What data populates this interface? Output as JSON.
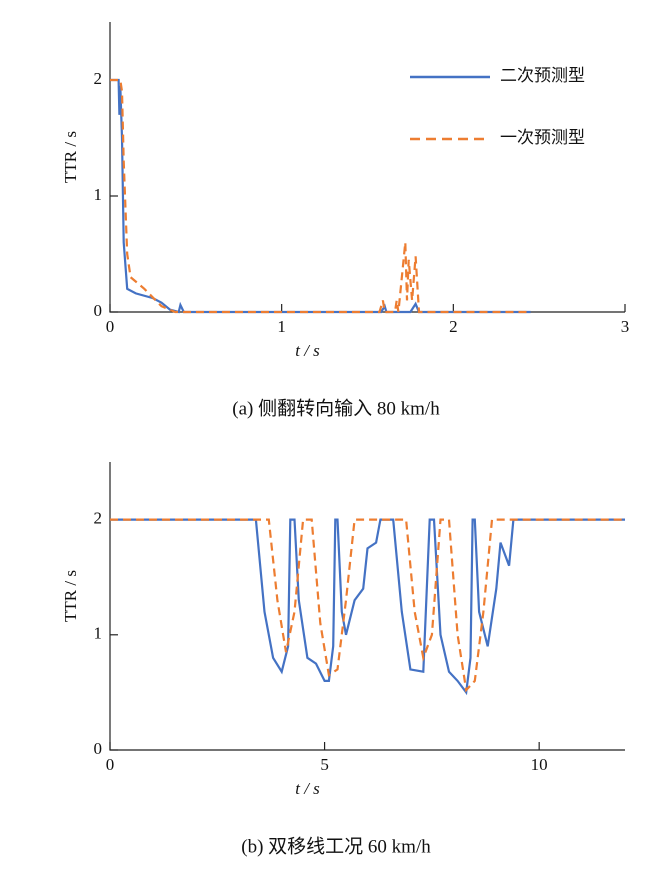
{
  "chart_data": [
    {
      "type": "line",
      "caption": "(a)  侧翻转向输入 80 km/h",
      "xlabel": "t / s",
      "ylabel": "TTR / s",
      "xlim": [
        0,
        3
      ],
      "xticks": [
        0,
        1,
        2,
        3
      ],
      "ylim": [
        0,
        2.5
      ],
      "yticks": [
        0,
        1,
        2
      ],
      "legend": "upper right",
      "series": [
        {
          "name": "二次预测型",
          "color": "#4472c4",
          "dash": false,
          "x": [
            0,
            0.05,
            0.055,
            0.06,
            0.07,
            0.08,
            0.1,
            0.15,
            0.25,
            0.3,
            0.35,
            0.4,
            0.41,
            0.43,
            1.58,
            1.6,
            1.61,
            1.75,
            1.78,
            1.8,
            2.45
          ],
          "values": [
            2,
            2,
            1.7,
            1.95,
            1.5,
            0.6,
            0.2,
            0.16,
            0.12,
            0.08,
            0.02,
            0,
            0.06,
            0,
            0,
            0.05,
            0,
            0,
            0.07,
            0,
            0
          ]
        },
        {
          "name": "一次预测型",
          "color": "#ed7d31",
          "dash": true,
          "x": [
            0,
            0.06,
            0.07,
            0.08,
            0.1,
            0.12,
            0.2,
            0.3,
            0.38,
            1.57,
            1.59,
            1.6,
            1.66,
            1.67,
            1.68,
            1.72,
            1.73,
            1.74,
            1.76,
            1.78,
            1.8,
            2.45
          ],
          "values": [
            2,
            2,
            1.9,
            1.3,
            0.5,
            0.3,
            0.2,
            0.05,
            0,
            0,
            0.1,
            0,
            0,
            0.1,
            0,
            0.6,
            0.1,
            0.45,
            0.1,
            0.48,
            0,
            0
          ]
        }
      ]
    },
    {
      "type": "line",
      "caption": "(b)  双移线工况 60 km/h",
      "xlabel": "t / s",
      "ylabel": "TTR / s",
      "xlim": [
        0,
        12
      ],
      "xticks": [
        0,
        5,
        10
      ],
      "ylim": [
        0,
        2.5
      ],
      "yticks": [
        0,
        1,
        2
      ],
      "series": [
        {
          "color": "#4472c4",
          "dash": false,
          "x": [
            0,
            3.4,
            3.6,
            3.8,
            4.0,
            4.15,
            4.2,
            4.3,
            4.4,
            4.6,
            4.8,
            5.0,
            5.1,
            5.2,
            5.25,
            5.3,
            5.4,
            5.5,
            5.7,
            5.9,
            6.0,
            6.2,
            6.3,
            6.6,
            6.8,
            7.0,
            7.3,
            7.45,
            7.55,
            7.7,
            7.9,
            8.1,
            8.3,
            8.4,
            8.45,
            8.5,
            8.6,
            8.8,
            9.0,
            9.1,
            9.3,
            9.4,
            12
          ],
          "values": [
            2,
            2,
            1.2,
            0.8,
            0.68,
            0.9,
            2,
            2,
            1.3,
            0.8,
            0.75,
            0.6,
            0.6,
            0.9,
            2,
            2,
            1.2,
            1.0,
            1.3,
            1.4,
            1.75,
            1.8,
            2,
            2,
            1.2,
            0.7,
            0.68,
            2,
            2,
            1.0,
            0.68,
            0.6,
            0.5,
            0.8,
            2,
            2,
            1.2,
            0.9,
            1.4,
            1.8,
            1.6,
            2,
            2
          ]
        },
        {
          "color": "#ed7d31",
          "dash": true,
          "x": [
            0,
            3.7,
            3.9,
            4.1,
            4.3,
            4.5,
            4.7,
            4.9,
            5.1,
            5.3,
            5.5,
            5.7,
            6.9,
            7.1,
            7.3,
            7.5,
            7.7,
            7.9,
            8.1,
            8.3,
            8.5,
            8.7,
            8.9,
            12
          ],
          "values": [
            2,
            2,
            1.3,
            0.85,
            1.2,
            2,
            2,
            1.1,
            0.65,
            0.7,
            1.3,
            2,
            2,
            1.2,
            0.8,
            1.0,
            2,
            2,
            1.0,
            0.52,
            0.6,
            1.2,
            2,
            2
          ]
        }
      ]
    }
  ]
}
